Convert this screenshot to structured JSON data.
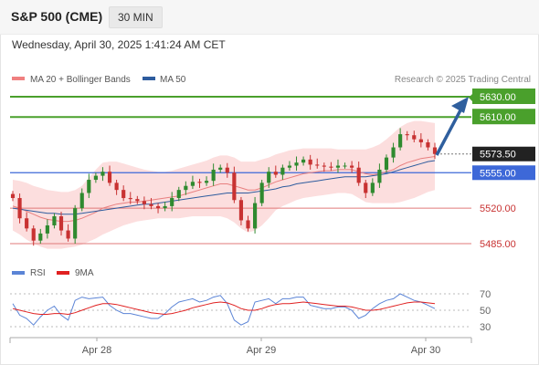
{
  "header": {
    "title": "S&P 500 (CME)",
    "timeframe": "30 MIN",
    "datetime": "Wednesday, April 30, 2025 1:41:24 AM CET"
  },
  "legend": {
    "items": [
      {
        "label": "MA 20 + Bollinger Bands",
        "color": "#f08080"
      },
      {
        "label": "MA 50",
        "color": "#2e5c9e"
      }
    ],
    "credit": "Research © 2025 Trading Central"
  },
  "rsi_legend": {
    "items": [
      {
        "label": "RSI",
        "color": "#5b84d6"
      },
      {
        "label": "9MA",
        "color": "#e02020"
      }
    ]
  },
  "colors": {
    "up": "#2f8a2f",
    "down": "#c83232",
    "target_line": "#4aa02c",
    "pivot_line": "#3d68d8",
    "support_line": "#e07a7a",
    "arrow": "#2f5f9e"
  },
  "chart_data": [
    {
      "type": "line",
      "name": "S&P 500 (CME) 30 MIN price",
      "x_ticks": [
        "Apr 28",
        "Apr 29",
        "Apr 30"
      ],
      "y_levels": [
        {
          "value": 5630.0,
          "label": "5630.00",
          "kind": "target"
        },
        {
          "value": 5610.0,
          "label": "5610.00",
          "kind": "target"
        },
        {
          "value": 5573.5,
          "label": "5573.50",
          "kind": "last-price"
        },
        {
          "value": 5555.0,
          "label": "5555.00",
          "kind": "pivot"
        },
        {
          "value": 5520.0,
          "label": "5520.00",
          "kind": "support"
        },
        {
          "value": 5485.0,
          "label": "5485.00",
          "kind": "support"
        }
      ],
      "ylim": [
        5480,
        5640
      ],
      "series": [
        {
          "name": "Close",
          "values": [
            5530,
            5510,
            5500,
            5488,
            5495,
            5503,
            5512,
            5498,
            5490,
            5520,
            5535,
            5548,
            5552,
            5556,
            5545,
            5538,
            5530,
            5529,
            5527,
            5524,
            5522,
            5520,
            5522,
            5530,
            5538,
            5542,
            5546,
            5545,
            5547,
            5558,
            5560,
            5555,
            5528,
            5508,
            5500,
            5525,
            5545,
            5556,
            5553,
            5560,
            5562,
            5565,
            5568,
            5563,
            5562,
            5561,
            5560,
            5562,
            5562,
            5560,
            5545,
            5535,
            5545,
            5558,
            5570,
            5580,
            5593,
            5592,
            5588,
            5585,
            5580,
            5573.5
          ]
        },
        {
          "name": "MA 20",
          "values": [
            5522,
            5520,
            5517,
            5514,
            5511,
            5509,
            5508,
            5507,
            5507,
            5508,
            5510,
            5513,
            5516,
            5520,
            5522,
            5524,
            5525,
            5526,
            5526,
            5527,
            5528,
            5529,
            5530,
            5531,
            5532,
            5534,
            5536,
            5538,
            5540,
            5542,
            5544,
            5544,
            5542,
            5540,
            5538,
            5538,
            5540,
            5543,
            5546,
            5548,
            5550,
            5552,
            5554,
            5555,
            5556,
            5557,
            5557,
            5558,
            5558,
            5558,
            5556,
            5554,
            5553,
            5554,
            5556,
            5558,
            5562,
            5565,
            5567,
            5569,
            5570,
            5571
          ]
        },
        {
          "name": "MA 50",
          "values": [
            5520,
            5519,
            5518,
            5517,
            5516,
            5515,
            5515,
            5514,
            5514,
            5514,
            5515,
            5516,
            5517,
            5518,
            5519,
            5520,
            5521,
            5522,
            5523,
            5524,
            5524,
            5525,
            5526,
            5527,
            5528,
            5529,
            5530,
            5531,
            5532,
            5533,
            5534,
            5535,
            5535,
            5535,
            5535,
            5536,
            5537,
            5538,
            5539,
            5541,
            5542,
            5544,
            5545,
            5546,
            5547,
            5548,
            5549,
            5550,
            5551,
            5551,
            5551,
            5551,
            5552,
            5553,
            5554,
            5556,
            5558,
            5560,
            5562,
            5564,
            5566,
            5567
          ]
        },
        {
          "name": "Bollinger Upper",
          "values": [
            5548,
            5547,
            5545,
            5542,
            5540,
            5538,
            5537,
            5536,
            5536,
            5538,
            5542,
            5550,
            5558,
            5565,
            5566,
            5566,
            5564,
            5562,
            5560,
            5558,
            5557,
            5556,
            5556,
            5557,
            5559,
            5561,
            5563,
            5565,
            5567,
            5570,
            5572,
            5572,
            5570,
            5566,
            5566,
            5566,
            5568,
            5570,
            5573,
            5575,
            5577,
            5578,
            5579,
            5579,
            5579,
            5579,
            5579,
            5578,
            5578,
            5578,
            5578,
            5578,
            5580,
            5583,
            5588,
            5594,
            5600,
            5604,
            5606,
            5606,
            5605,
            5604
          ]
        },
        {
          "name": "Bollinger Lower",
          "values": [
            5498,
            5494,
            5489,
            5485,
            5482,
            5480,
            5480,
            5480,
            5481,
            5482,
            5484,
            5487,
            5490,
            5494,
            5497,
            5500,
            5503,
            5505,
            5507,
            5508,
            5509,
            5510,
            5510,
            5510,
            5510,
            5511,
            5512,
            5512,
            5512,
            5512,
            5512,
            5510,
            5506,
            5500,
            5496,
            5498,
            5503,
            5510,
            5518,
            5522,
            5525,
            5528,
            5530,
            5531,
            5532,
            5533,
            5534,
            5535,
            5535,
            5534,
            5530,
            5526,
            5525,
            5525,
            5525,
            5525,
            5526,
            5528,
            5530,
            5533,
            5536,
            5538
          ]
        }
      ]
    },
    {
      "type": "line",
      "name": "RSI panel",
      "y_ticks": [
        "70",
        "50",
        "30"
      ],
      "ylim": [
        25,
        75
      ],
      "series": [
        {
          "name": "RSI",
          "values": [
            58,
            44,
            40,
            32,
            42,
            50,
            55,
            44,
            38,
            62,
            66,
            64,
            65,
            66,
            56,
            50,
            46,
            46,
            44,
            42,
            40,
            40,
            46,
            54,
            60,
            62,
            64,
            60,
            62,
            66,
            68,
            58,
            38,
            32,
            36,
            60,
            62,
            64,
            58,
            64,
            64,
            66,
            66,
            56,
            54,
            52,
            52,
            54,
            54,
            50,
            40,
            44,
            52,
            58,
            62,
            64,
            70,
            66,
            62,
            60,
            56,
            52
          ]
        },
        {
          "name": "9MA",
          "values": [
            52,
            50,
            48,
            46,
            45,
            45,
            46,
            46,
            45,
            47,
            50,
            53,
            56,
            58,
            58,
            57,
            55,
            53,
            51,
            49,
            47,
            46,
            45,
            46,
            48,
            50,
            53,
            55,
            57,
            59,
            60,
            59,
            56,
            52,
            50,
            50,
            52,
            55,
            57,
            58,
            58,
            59,
            60,
            59,
            58,
            57,
            56,
            55,
            55,
            54,
            52,
            50,
            50,
            51,
            53,
            55,
            57,
            59,
            60,
            60,
            59,
            58
          ]
        }
      ]
    }
  ]
}
